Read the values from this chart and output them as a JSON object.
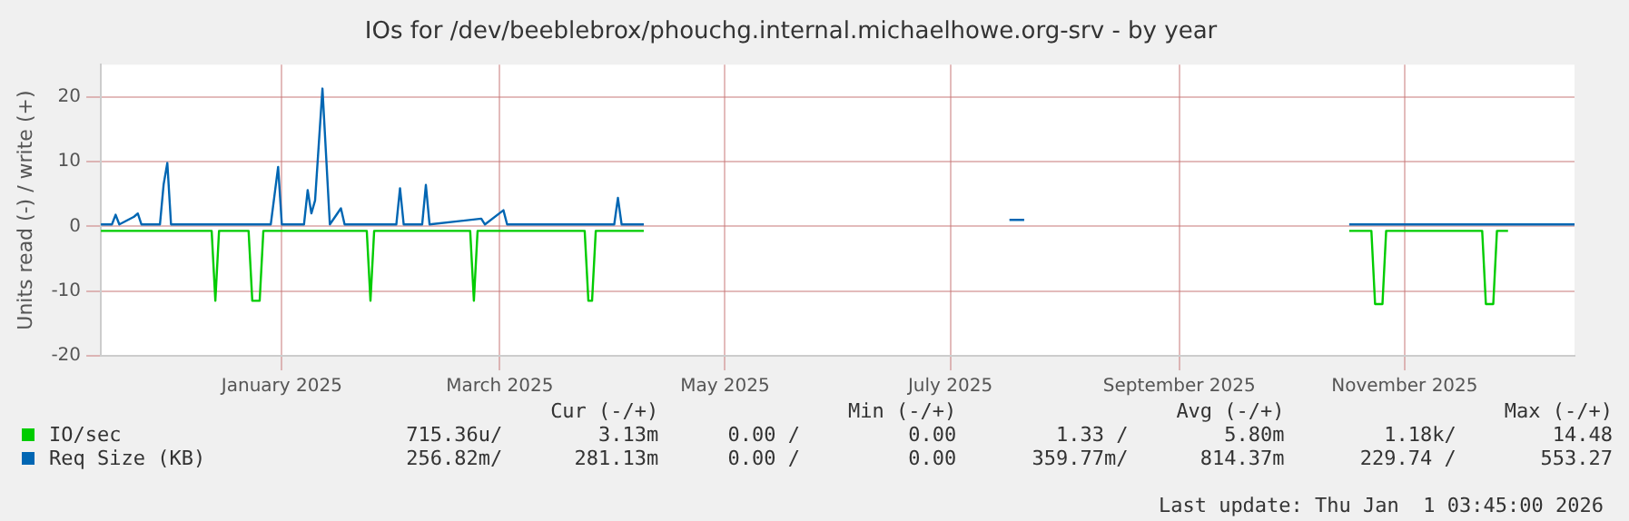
{
  "chart_data": {
    "type": "line",
    "title": "IOs for /dev/beeblebrox/phouchg.internal.michaelhowe.org-srv - by year",
    "ylabel": "Units read (-) / write (+)",
    "xlim": [
      "2024-11-13",
      "2025-12-17"
    ],
    "xticks": [
      {
        "value": "2025-01-01",
        "label": "January 2025"
      },
      {
        "value": "2025-03-01",
        "label": "March 2025"
      },
      {
        "value": "2025-05-01",
        "label": "May 2025"
      },
      {
        "value": "2025-07-01",
        "label": "July 2025"
      },
      {
        "value": "2025-09-01",
        "label": "September 2025"
      },
      {
        "value": "2025-11-01",
        "label": "November 2025"
      }
    ],
    "ylim": [
      -20,
      25
    ],
    "yticks": [
      -20,
      -10,
      0,
      10,
      20
    ],
    "grid": true,
    "legend": "bottom",
    "marker": "none",
    "line_style": "solid",
    "series": [
      {
        "name": "IO/sec",
        "color": "#00cc00",
        "x": [
          "2024-11-13",
          "2024-12-13",
          "2024-12-14",
          "2024-12-15",
          "2024-12-23",
          "2024-12-24",
          "2024-12-26",
          "2024-12-27",
          "2025-01-24",
          "2025-01-25",
          "2025-01-26",
          "2025-02-21",
          "2025-02-22",
          "2025-02-23",
          "2025-03-24",
          "2025-03-25",
          "2025-03-26",
          "2025-03-27",
          "2025-04-09",
          "2025-04-10",
          "2025-10-17",
          "2025-10-23",
          "2025-10-24",
          "2025-10-26",
          "2025-10-27",
          "2025-11-22",
          "2025-11-23",
          "2025-11-25",
          "2025-11-26",
          "2025-11-29"
        ],
        "values": [
          -0.7,
          -0.7,
          -11.5,
          -0.7,
          -0.7,
          -11.5,
          -11.5,
          -0.7,
          -0.7,
          -11.5,
          -0.7,
          -0.7,
          -11.5,
          -0.7,
          -0.7,
          -11.5,
          -11.5,
          -0.7,
          -0.7,
          null,
          -0.7,
          -0.7,
          -12,
          -12,
          -0.7,
          -0.7,
          -12,
          -12,
          -0.7,
          -0.7
        ]
      },
      {
        "name": "Req Size (KB)",
        "color": "#0066b3",
        "x": [
          "2024-11-13",
          "2024-11-16",
          "2024-11-17",
          "2024-11-18",
          "2024-11-22",
          "2024-11-23",
          "2024-11-24",
          "2024-11-29",
          "2024-11-30",
          "2024-12-01",
          "2024-12-02",
          "2024-12-29",
          "2024-12-31",
          "2025-01-01",
          "2025-01-07",
          "2025-01-08",
          "2025-01-09",
          "2025-01-10",
          "2025-01-12",
          "2025-01-13",
          "2025-01-14",
          "2025-01-17",
          "2025-01-18",
          "2025-02-01",
          "2025-02-02",
          "2025-02-03",
          "2025-02-08",
          "2025-02-09",
          "2025-02-10",
          "2025-02-24",
          "2025-02-25",
          "2025-03-02",
          "2025-03-03",
          "2025-04-01",
          "2025-04-02",
          "2025-04-03",
          "2025-04-09",
          "2025-04-10",
          "2025-07-17",
          "2025-07-21",
          "2025-07-22",
          "2025-10-17",
          "2025-12-17"
        ],
        "values": [
          0.3,
          0.3,
          1.8,
          0.3,
          1.5,
          2,
          0.3,
          0.3,
          6.5,
          9.8,
          0.3,
          0.3,
          9.2,
          0.3,
          0.3,
          5.6,
          2,
          4,
          21.3,
          10.8,
          0.3,
          2.8,
          0.3,
          0.3,
          5.9,
          0.3,
          0.3,
          6.4,
          0.3,
          1.2,
          0.3,
          2.5,
          0.3,
          0.3,
          4.4,
          0.3,
          0.3,
          null,
          1,
          1,
          null,
          0.3,
          0.3
        ]
      }
    ],
    "annotations": [
      "Cur (-/+)",
      "Min (-/+)",
      "Avg (-/+)",
      "Max (-/+)",
      "715.36u/        3.13m",
      "0.00 /         0.00",
      "1.33 /        5.80m",
      "1.18k/        14.48",
      "256.82m/      281.13m",
      "0.00 /         0.00",
      "359.77m/      814.37m",
      "229.74 /       553.27",
      "Last update: Thu Jan  1 03:45:00 2026"
    ]
  }
}
